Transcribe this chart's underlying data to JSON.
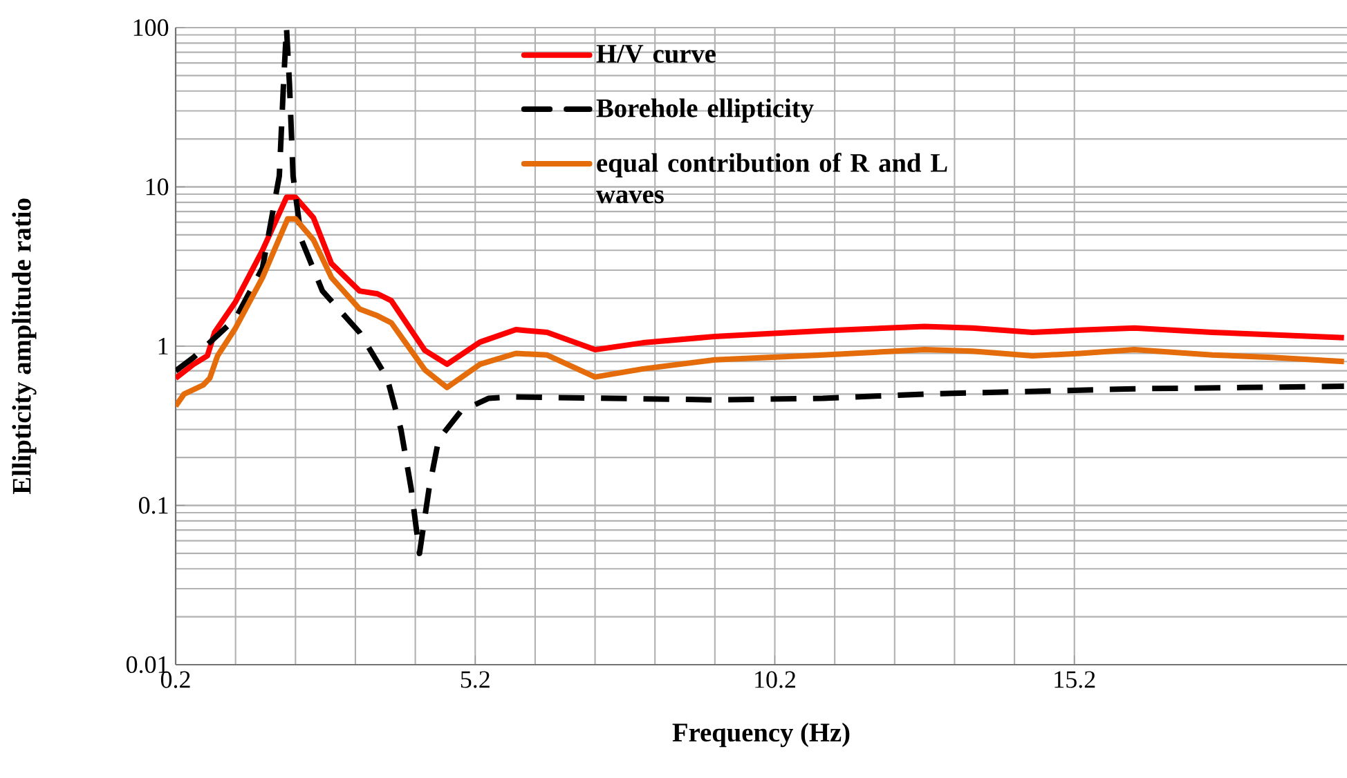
{
  "chart_data": {
    "type": "line",
    "xlabel": "Frequency (Hz)",
    "ylabel": "Ellipticity amplitude ratio",
    "xlim": [
      0.2,
      19.75
    ],
    "ylim": [
      0.01,
      100
    ],
    "xticks": [
      0.2,
      5.2,
      10.2,
      15.2
    ],
    "yticks": [
      0.01,
      0.1,
      1,
      10,
      100
    ],
    "log": "y",
    "grid": true,
    "legend": "top",
    "series": [
      {
        "name": "H/V curve",
        "color": "#ff0000",
        "line_style": "solid",
        "x": [
          0.2,
          0.5,
          0.73,
          0.85,
          1.2,
          1.65,
          2.05,
          2.2,
          2.5,
          2.8,
          3.27,
          3.57,
          3.8,
          4.36,
          4.73,
          5.28,
          5.88,
          6.4,
          7.2,
          8.0,
          9.2,
          11.0,
          12.7,
          13.5,
          14.5,
          15.3,
          16.2,
          17.5,
          18.5,
          19.7
        ],
        "values": [
          0.63,
          0.77,
          0.87,
          1.22,
          1.9,
          4.0,
          8.6,
          8.6,
          6.4,
          3.3,
          2.22,
          2.13,
          1.93,
          0.94,
          0.77,
          1.06,
          1.27,
          1.22,
          0.95,
          1.05,
          1.15,
          1.25,
          1.33,
          1.3,
          1.22,
          1.26,
          1.3,
          1.22,
          1.18,
          1.13
        ]
      },
      {
        "name": "Borehole ellipticity",
        "color": "#000000",
        "line_style": "dashed",
        "x": [
          0.2,
          0.5,
          0.9,
          1.2,
          1.65,
          1.93,
          2.0,
          2.05,
          2.1,
          2.16,
          2.3,
          2.65,
          3.27,
          3.73,
          3.96,
          4.13,
          4.27,
          4.43,
          4.59,
          4.96,
          5.42,
          5.8,
          7.5,
          9.2,
          11.0,
          12.7,
          14.5,
          16.2,
          18.0,
          19.7
        ],
        "values": [
          0.7,
          0.85,
          1.17,
          1.49,
          3.1,
          11.7,
          44,
          100,
          44,
          11.7,
          4.65,
          2.22,
          1.22,
          0.63,
          0.3,
          0.128,
          0.05,
          0.128,
          0.26,
          0.39,
          0.47,
          0.48,
          0.47,
          0.46,
          0.47,
          0.5,
          0.52,
          0.54,
          0.55,
          0.56
        ]
      },
      {
        "name": "equal contribution of R and L waves",
        "color": "#e46c0a",
        "line_style": "solid",
        "x": [
          0.2,
          0.34,
          0.66,
          0.77,
          0.9,
          1.2,
          1.65,
          2.07,
          2.2,
          2.5,
          2.8,
          3.27,
          3.57,
          3.8,
          4.36,
          4.73,
          5.28,
          5.88,
          6.4,
          7.2,
          8.0,
          9.2,
          11.0,
          12.7,
          13.5,
          14.5,
          15.3,
          16.2,
          17.5,
          18.5,
          19.7
        ],
        "values": [
          0.42,
          0.5,
          0.57,
          0.63,
          0.87,
          1.3,
          2.7,
          6.3,
          6.3,
          4.65,
          2.7,
          1.71,
          1.55,
          1.4,
          0.71,
          0.55,
          0.77,
          0.9,
          0.88,
          0.64,
          0.72,
          0.82,
          0.88,
          0.95,
          0.93,
          0.87,
          0.9,
          0.95,
          0.88,
          0.85,
          0.8
        ]
      }
    ]
  }
}
